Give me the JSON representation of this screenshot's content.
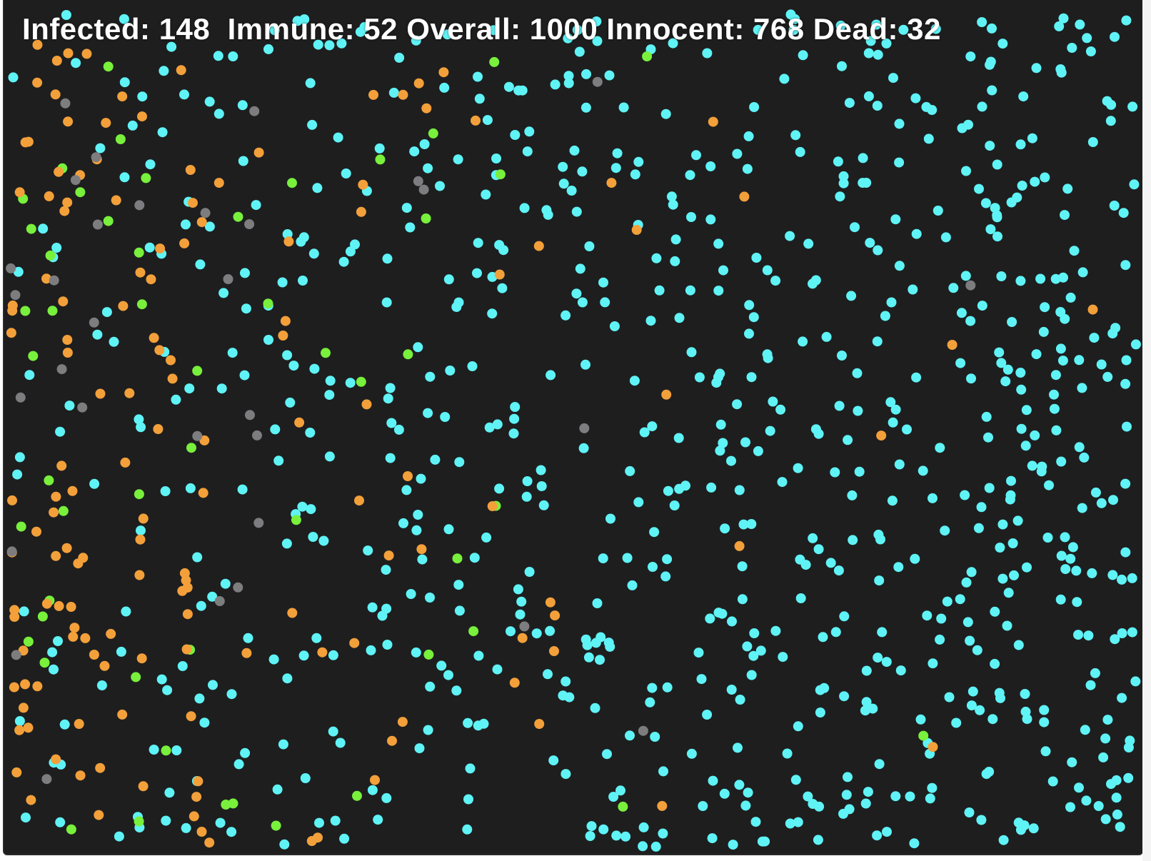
{
  "hud": {
    "infected_label": "Infected:",
    "infected_value": "148",
    "immune_label": "Immune:",
    "immune_value": "52",
    "overall_label": "Overall:",
    "overall_value": "1000",
    "innocent_label": "Innocent:",
    "innocent_value": "768",
    "dead_label": "Dead:",
    "dead_value": "32"
  },
  "colors": {
    "background": "#1e1e1f",
    "innocent": "#5ff3f6",
    "infected": "#f3a03a",
    "immune": "#78f03c",
    "dead": "#7d7d7f",
    "hud_text": "#ffffff"
  },
  "population": {
    "innocent": 768,
    "infected": 148,
    "immune": 52,
    "dead": 32,
    "overall": 1000
  }
}
